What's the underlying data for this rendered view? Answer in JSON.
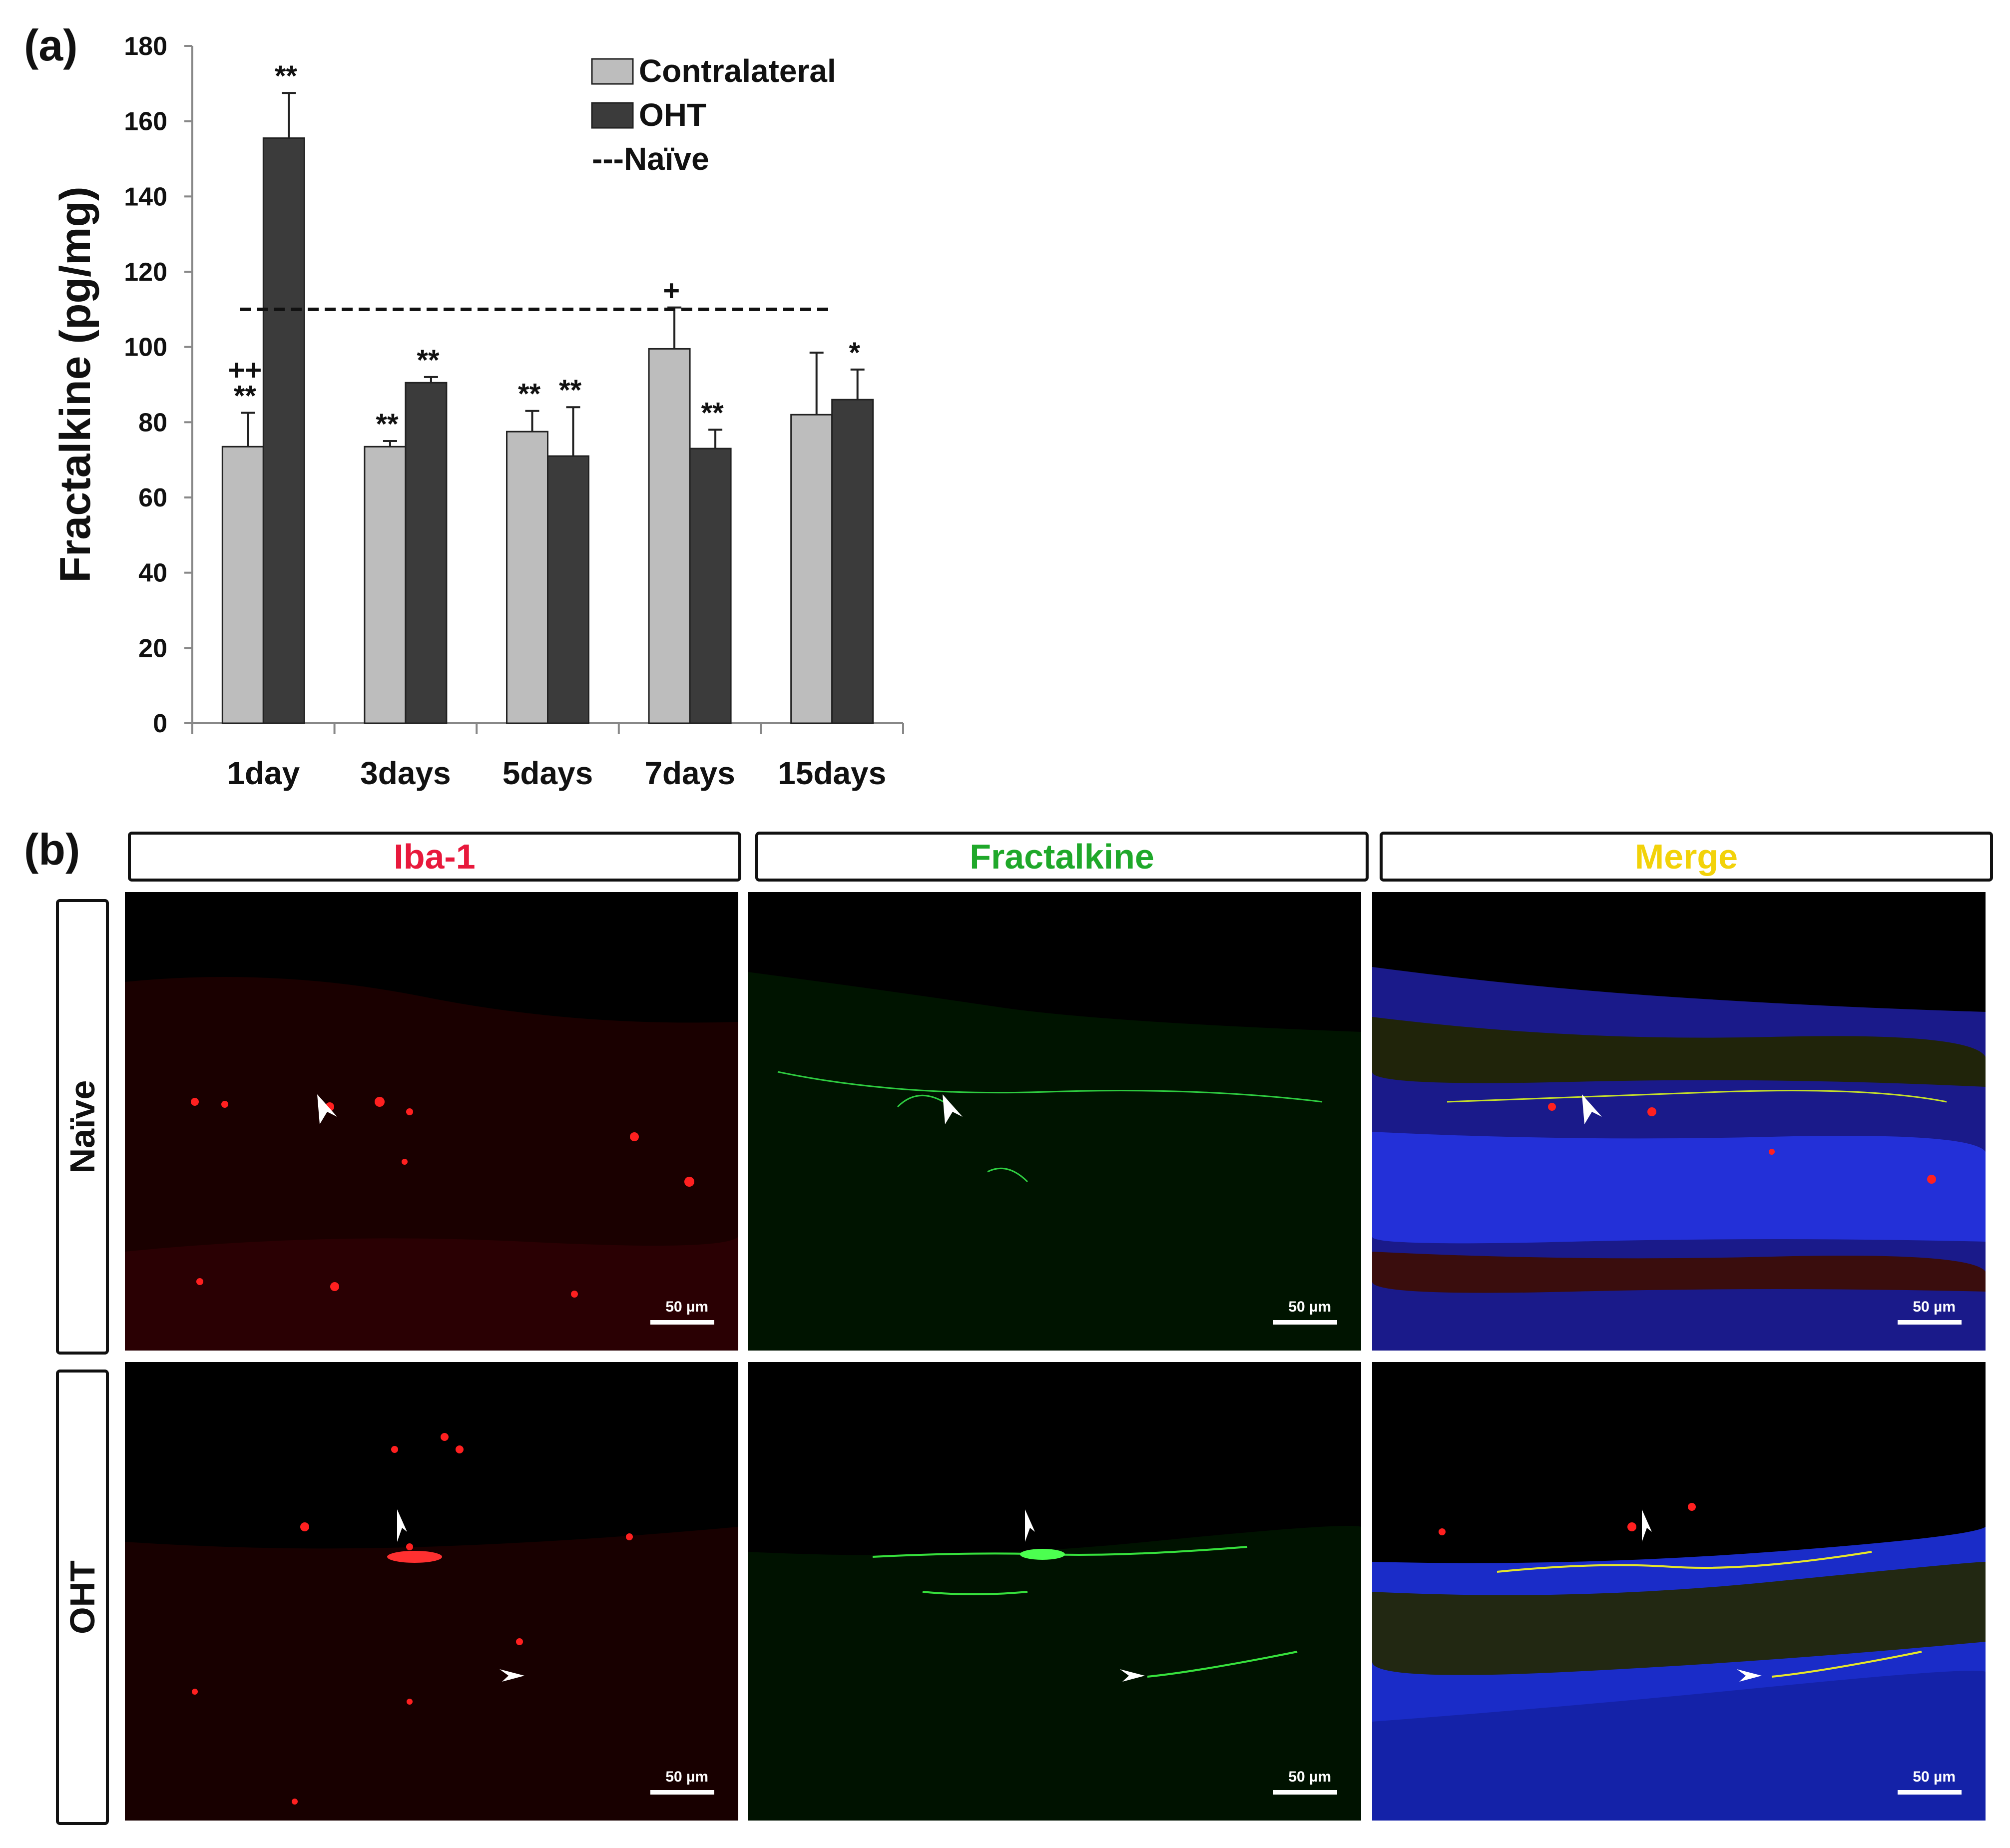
{
  "panel_a_label": "(a)",
  "panel_b_label": "(b)",
  "chart_data": {
    "type": "bar",
    "ylabel": "Fractalkine (pg/mg)",
    "xlabel": "",
    "ylim": [
      0,
      180
    ],
    "yticks": [
      "0",
      "20",
      "40",
      "60",
      "80",
      "100",
      "120",
      "140",
      "160",
      "180"
    ],
    "categories": [
      "1day",
      "3days",
      "5days",
      "7days",
      "15days"
    ],
    "series": [
      {
        "name": "Contralateral",
        "color": "#bdbdbd",
        "values": [
          73.5,
          73.5,
          77.5,
          99.5,
          82
        ],
        "errors": [
          9,
          1.5,
          5.5,
          11,
          16.5
        ],
        "annotations": [
          "++\n**",
          "**",
          "**",
          "+",
          ""
        ]
      },
      {
        "name": "OHT",
        "color": "#3b3b3b",
        "values": [
          155.5,
          90.5,
          71,
          73,
          86
        ],
        "errors": [
          12,
          1.5,
          13,
          5,
          8
        ],
        "annotations": [
          "**",
          "**",
          "**",
          "**",
          "*"
        ]
      }
    ],
    "reference_line": {
      "name": "Naïve",
      "value": 110,
      "style": "dashed"
    },
    "legend": {
      "placement": "top",
      "entries": [
        "Contralateral",
        "OHT",
        "---Naïve"
      ]
    },
    "grid": false
  },
  "microscopy": {
    "columns": [
      {
        "label": "Iba-1",
        "color": "#e8193c"
      },
      {
        "label": "Fractalkine",
        "color": "#1fa82a"
      },
      {
        "label": "Merge",
        "color": "#f2d20a"
      }
    ],
    "rows": [
      {
        "label": "Naïve"
      },
      {
        "label": "OHT"
      }
    ],
    "scale_label": "50 µm"
  }
}
